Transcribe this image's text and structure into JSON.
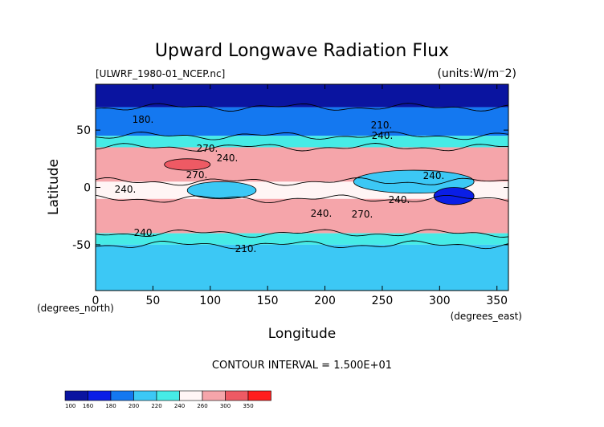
{
  "chart_data": {
    "type": "heatmap",
    "title": "Upward Longwave Radiation Flux",
    "source_label": "[ULWRF_1980-01_NCEP.nc]",
    "units_label": "(units:W/m⁻2)",
    "xlabel": "Longitude",
    "ylabel": "Latitude",
    "x_unit_label": "(degrees_east)",
    "y_unit_label": "(degrees_north)",
    "xlim": [
      0,
      360
    ],
    "ylim": [
      -90,
      90
    ],
    "x_ticks": [
      0,
      50,
      100,
      150,
      200,
      250,
      300,
      350
    ],
    "y_ticks": [
      -50,
      0,
      50
    ],
    "contour_interval_text": "CONTOUR INTERVAL = 1.500E+01",
    "contour_labels": [
      "180.",
      "210.",
      "240.",
      "270.",
      "240.",
      "270.",
      "240.",
      "240.",
      "240.",
      "270.",
      "240.",
      "240.",
      "210."
    ],
    "colorbar": {
      "levels": [
        "100",
        "160",
        "180",
        "200",
        "220",
        "240",
        "260",
        "300",
        "350"
      ],
      "colors": [
        "#0a14a0",
        "#0a1ee6",
        "#1478f0",
        "#3cc8f5",
        "#46ebe6",
        "#fff5f5",
        "#f5a5aa",
        "#ee5a64",
        "#ff1e1e"
      ]
    },
    "zonal_mean_bands": [
      {
        "lat_from": 90,
        "lat_to": 70,
        "value": 145
      },
      {
        "lat_from": 70,
        "lat_to": 45,
        "value": 195
      },
      {
        "lat_from": 45,
        "lat_to": 35,
        "value": 230
      },
      {
        "lat_from": 35,
        "lat_to": 5,
        "value": 275
      },
      {
        "lat_from": 5,
        "lat_to": -10,
        "value": 250
      },
      {
        "lat_from": -10,
        "lat_to": -40,
        "value": 270
      },
      {
        "lat_from": -40,
        "lat_to": -50,
        "value": 235
      },
      {
        "lat_from": -50,
        "lat_to": -90,
        "value": 205
      }
    ],
    "regional_features": [
      {
        "lon_range": [
          225,
          330
        ],
        "lat_range": [
          -5,
          15
        ],
        "value": 210
      },
      {
        "lon_range": [
          295,
          330
        ],
        "lat_range": [
          -15,
          0
        ],
        "value": 165
      },
      {
        "lon_range": [
          80,
          140
        ],
        "lat_range": [
          -10,
          5
        ],
        "value": 215
      },
      {
        "lon_range": [
          60,
          100
        ],
        "lat_range": [
          15,
          25
        ],
        "value": 300
      }
    ]
  }
}
